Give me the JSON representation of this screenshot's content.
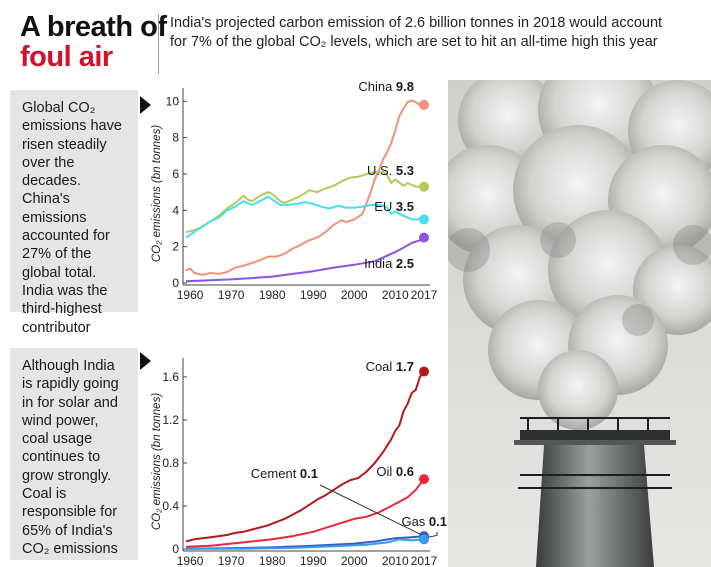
{
  "header": {
    "title_line1": "A breath of",
    "title_line2": "foul air",
    "subtitle": "India's projected carbon emission of 2.6 billion tonnes in 2018 would account for 7% of the global CO₂ levels, which are set to hit an all-time high this year"
  },
  "notes": {
    "top": "Global CO₂ emissions have risen steadily over the decades. China's emissions accounted for 27% of the global total. India was the third-highest contributor",
    "bottom": "Although India is rapidly going in for solar and wind power, coal usage continues to grow strongly. Coal is responsible for 65% of India's CO₂ emissions"
  },
  "chart_data": [
    {
      "type": "line",
      "ylabel": "CO₂ emissions (bn tonnes)",
      "xlim": [
        1959,
        2017
      ],
      "ylim": [
        0,
        10.4
      ],
      "x_ticks": [
        1960,
        1970,
        1980,
        1990,
        2000,
        2010,
        2017
      ],
      "y_ticks": [
        0,
        2,
        4,
        6,
        8,
        10
      ],
      "grid": false,
      "series": [
        {
          "name": "China",
          "end_label": "9.8",
          "color": "#f4907a",
          "points": [
            [
              1959,
              0.7
            ],
            [
              1960,
              0.8
            ],
            [
              1961,
              0.55
            ],
            [
              1963,
              0.45
            ],
            [
              1965,
              0.55
            ],
            [
              1967,
              0.5
            ],
            [
              1969,
              0.6
            ],
            [
              1971,
              0.85
            ],
            [
              1973,
              0.95
            ],
            [
              1975,
              1.1
            ],
            [
              1977,
              1.25
            ],
            [
              1979,
              1.45
            ],
            [
              1981,
              1.45
            ],
            [
              1983,
              1.6
            ],
            [
              1985,
              1.9
            ],
            [
              1987,
              2.1
            ],
            [
              1989,
              2.35
            ],
            [
              1991,
              2.5
            ],
            [
              1993,
              2.8
            ],
            [
              1995,
              3.2
            ],
            [
              1997,
              3.45
            ],
            [
              1998,
              3.35
            ],
            [
              2000,
              3.5
            ],
            [
              2002,
              3.8
            ],
            [
              2003,
              4.4
            ],
            [
              2004,
              5.0
            ],
            [
              2005,
              5.7
            ],
            [
              2006,
              6.2
            ],
            [
              2007,
              6.8
            ],
            [
              2008,
              7.2
            ],
            [
              2009,
              7.7
            ],
            [
              2010,
              8.4
            ],
            [
              2011,
              9.2
            ],
            [
              2012,
              9.6
            ],
            [
              2013,
              9.95
            ],
            [
              2014,
              10.05
            ],
            [
              2015,
              9.95
            ],
            [
              2016,
              9.8
            ],
            [
              2017,
              9.8
            ]
          ]
        },
        {
          "name": "U.S.",
          "end_label": "5.3",
          "color": "#b5c95a",
          "points": [
            [
              1959,
              2.8
            ],
            [
              1961,
              2.9
            ],
            [
              1963,
              3.1
            ],
            [
              1965,
              3.4
            ],
            [
              1967,
              3.7
            ],
            [
              1969,
              4.1
            ],
            [
              1971,
              4.4
            ],
            [
              1973,
              4.8
            ],
            [
              1974,
              4.6
            ],
            [
              1975,
              4.5
            ],
            [
              1977,
              4.8
            ],
            [
              1979,
              5.0
            ],
            [
              1980,
              4.9
            ],
            [
              1982,
              4.5
            ],
            [
              1983,
              4.4
            ],
            [
              1985,
              4.6
            ],
            [
              1987,
              4.8
            ],
            [
              1989,
              5.1
            ],
            [
              1991,
              5.0
            ],
            [
              1993,
              5.2
            ],
            [
              1995,
              5.35
            ],
            [
              1997,
              5.6
            ],
            [
              1999,
              5.8
            ],
            [
              2001,
              5.85
            ],
            [
              2003,
              6.0
            ],
            [
              2005,
              6.1
            ],
            [
              2007,
              6.1
            ],
            [
              2008,
              5.95
            ],
            [
              2009,
              5.5
            ],
            [
              2010,
              5.7
            ],
            [
              2012,
              5.35
            ],
            [
              2013,
              5.5
            ],
            [
              2015,
              5.3
            ],
            [
              2017,
              5.3
            ]
          ]
        },
        {
          "name": "EU",
          "end_label": "3.5",
          "color": "#45dfee",
          "points": [
            [
              1959,
              2.5
            ],
            [
              1961,
              2.8
            ],
            [
              1963,
              3.1
            ],
            [
              1965,
              3.4
            ],
            [
              1967,
              3.6
            ],
            [
              1969,
              4.0
            ],
            [
              1971,
              4.2
            ],
            [
              1973,
              4.5
            ],
            [
              1975,
              4.3
            ],
            [
              1977,
              4.5
            ],
            [
              1979,
              4.75
            ],
            [
              1980,
              4.6
            ],
            [
              1982,
              4.3
            ],
            [
              1984,
              4.3
            ],
            [
              1986,
              4.35
            ],
            [
              1988,
              4.45
            ],
            [
              1990,
              4.35
            ],
            [
              1992,
              4.2
            ],
            [
              1994,
              4.1
            ],
            [
              1996,
              4.25
            ],
            [
              1998,
              4.15
            ],
            [
              2000,
              4.15
            ],
            [
              2002,
              4.2
            ],
            [
              2004,
              4.3
            ],
            [
              2006,
              4.3
            ],
            [
              2007,
              4.25
            ],
            [
              2008,
              4.15
            ],
            [
              2009,
              3.8
            ],
            [
              2010,
              3.95
            ],
            [
              2011,
              3.8
            ],
            [
              2012,
              3.7
            ],
            [
              2014,
              3.5
            ],
            [
              2016,
              3.5
            ],
            [
              2017,
              3.5
            ]
          ]
        },
        {
          "name": "India",
          "end_label": "2.5",
          "color": "#8c55e0",
          "points": [
            [
              1959,
              0.1
            ],
            [
              1965,
              0.15
            ],
            [
              1970,
              0.2
            ],
            [
              1975,
              0.27
            ],
            [
              1980,
              0.35
            ],
            [
              1985,
              0.5
            ],
            [
              1990,
              0.65
            ],
            [
              1995,
              0.85
            ],
            [
              2000,
              1.0
            ],
            [
              2005,
              1.2
            ],
            [
              2008,
              1.5
            ],
            [
              2010,
              1.7
            ],
            [
              2012,
              1.95
            ],
            [
              2014,
              2.2
            ],
            [
              2016,
              2.35
            ],
            [
              2017,
              2.5
            ]
          ]
        }
      ]
    },
    {
      "type": "line",
      "ylabel": "CO₂ emissions (bn tonnes)",
      "xlim": [
        1959,
        2017
      ],
      "ylim": [
        0,
        1.72
      ],
      "x_ticks": [
        1960,
        1970,
        1980,
        1990,
        2000,
        2010,
        2017
      ],
      "y_ticks": [
        0,
        0.4,
        0.8,
        1.2,
        1.6
      ],
      "y_tick_labels": [
        "0",
        "0.4",
        "0.8",
        "1.2",
        "1.6"
      ],
      "grid": false,
      "series": [
        {
          "name": "Coal",
          "end_label": "1.7",
          "color": "#b31a1e",
          "points": [
            [
              1959,
              0.07
            ],
            [
              1961,
              0.09
            ],
            [
              1963,
              0.1
            ],
            [
              1965,
              0.11
            ],
            [
              1967,
              0.12
            ],
            [
              1969,
              0.13
            ],
            [
              1971,
              0.15
            ],
            [
              1973,
              0.16
            ],
            [
              1975,
              0.18
            ],
            [
              1977,
              0.2
            ],
            [
              1979,
              0.22
            ],
            [
              1981,
              0.25
            ],
            [
              1983,
              0.28
            ],
            [
              1985,
              0.32
            ],
            [
              1987,
              0.36
            ],
            [
              1989,
              0.41
            ],
            [
              1991,
              0.46
            ],
            [
              1993,
              0.5
            ],
            [
              1995,
              0.55
            ],
            [
              1997,
              0.6
            ],
            [
              1999,
              0.64
            ],
            [
              2001,
              0.66
            ],
            [
              2003,
              0.72
            ],
            [
              2005,
              0.8
            ],
            [
              2007,
              0.9
            ],
            [
              2009,
              1.02
            ],
            [
              2010,
              1.1
            ],
            [
              2011,
              1.15
            ],
            [
              2012,
              1.28
            ],
            [
              2013,
              1.35
            ],
            [
              2014,
              1.45
            ],
            [
              2015,
              1.48
            ],
            [
              2016,
              1.6
            ],
            [
              2017,
              1.65
            ]
          ]
        },
        {
          "name": "Oil",
          "end_label": "0.6",
          "color": "#e8283a",
          "points": [
            [
              1959,
              0.02
            ],
            [
              1965,
              0.03
            ],
            [
              1970,
              0.05
            ],
            [
              1975,
              0.07
            ],
            [
              1980,
              0.09
            ],
            [
              1985,
              0.12
            ],
            [
              1990,
              0.16
            ],
            [
              1995,
              0.22
            ],
            [
              2000,
              0.28
            ],
            [
              2003,
              0.3
            ],
            [
              2006,
              0.34
            ],
            [
              2009,
              0.4
            ],
            [
              2011,
              0.44
            ],
            [
              2013,
              0.48
            ],
            [
              2015,
              0.55
            ],
            [
              2017,
              0.65
            ]
          ]
        },
        {
          "name": "Cement",
          "end_label": "0.1",
          "color": "#2f5fc0",
          "points": [
            [
              1959,
              0.003
            ],
            [
              1970,
              0.008
            ],
            [
              1980,
              0.015
            ],
            [
              1990,
              0.03
            ],
            [
              2000,
              0.05
            ],
            [
              2005,
              0.07
            ],
            [
              2010,
              0.1
            ],
            [
              2014,
              0.11
            ],
            [
              2017,
              0.12
            ]
          ]
        },
        {
          "name": "Gas",
          "end_label": "0.1",
          "color": "#3a9be8",
          "points": [
            [
              1959,
              0.001
            ],
            [
              1975,
              0.004
            ],
            [
              1985,
              0.01
            ],
            [
              1995,
              0.025
            ],
            [
              2003,
              0.04
            ],
            [
              2008,
              0.06
            ],
            [
              2011,
              0.09
            ],
            [
              2014,
              0.08
            ],
            [
              2017,
              0.09
            ]
          ]
        }
      ]
    }
  ]
}
